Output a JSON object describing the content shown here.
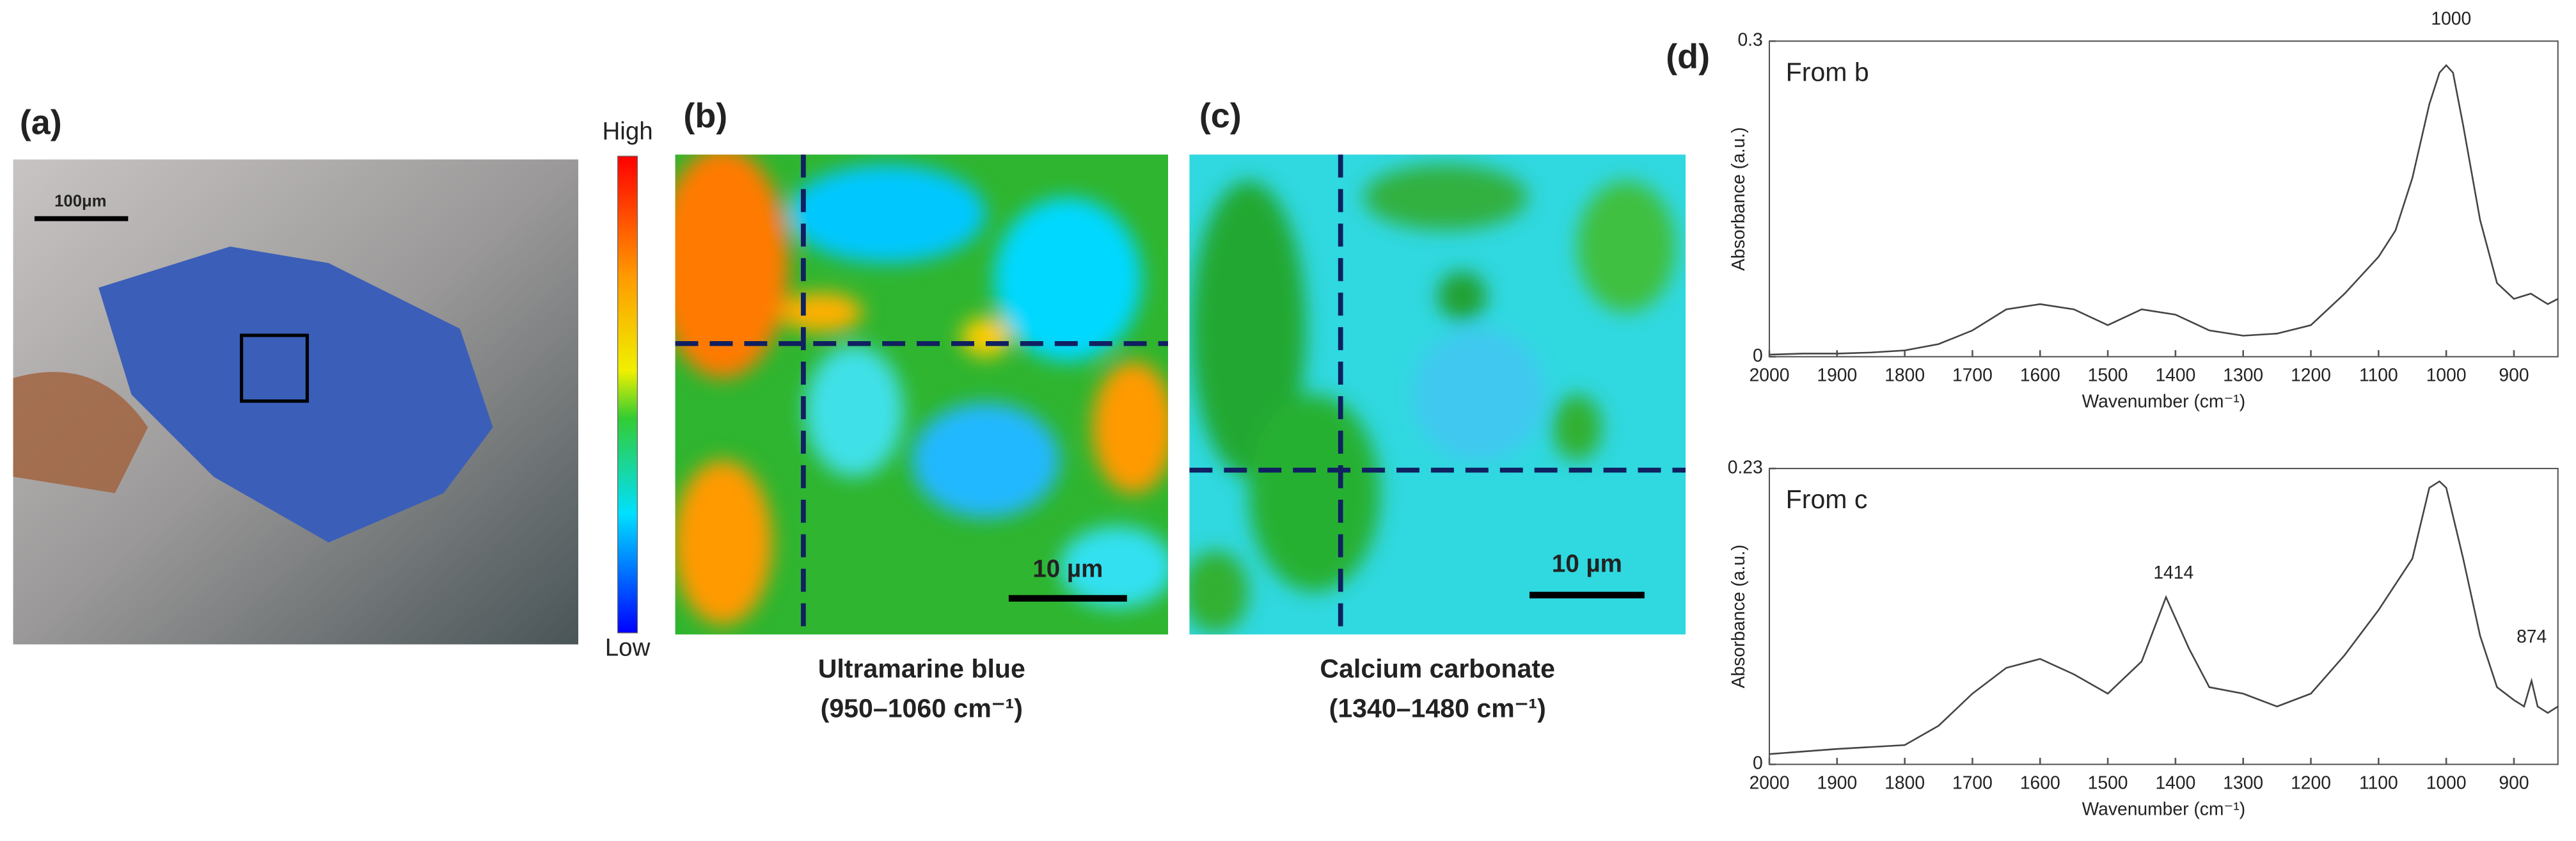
{
  "panels": {
    "a": {
      "label": "(a)",
      "scale_bar": "100μm"
    },
    "colorbar": {
      "high": "High",
      "low": "Low"
    },
    "b": {
      "label": "(b)",
      "scale_bar": "10 µm",
      "caption": [
        "Ultramarine blue",
        "(950–1060 cm⁻¹)"
      ]
    },
    "c": {
      "label": "(c)",
      "scale_bar": "10 µm",
      "caption": [
        "Calcium carbonate",
        "(1340–1480 cm⁻¹)"
      ]
    },
    "d": {
      "label": "(d)"
    }
  },
  "chart_data": [
    {
      "type": "line",
      "label": "From b",
      "xlabel": "Wavenumber (cm⁻¹)",
      "ylabel": "Absorbance (a.u.)",
      "annotations": [
        "1000"
      ],
      "xlim": [
        2000,
        835
      ],
      "xticks": [
        2000,
        1900,
        1800,
        1700,
        1600,
        1500,
        1400,
        1300,
        1200,
        1100,
        1000,
        900
      ],
      "ylim": [
        0,
        0.3
      ],
      "yticks": [
        0,
        0.3
      ],
      "series": [
        {
          "color": "#444444",
          "x": [
            2000,
            1950,
            1900,
            1850,
            1800,
            1750,
            1700,
            1650,
            1600,
            1550,
            1500,
            1450,
            1400,
            1350,
            1300,
            1250,
            1200,
            1150,
            1100,
            1075,
            1050,
            1025,
            1010,
            1000,
            990,
            975,
            950,
            925,
            900,
            875,
            850,
            835
          ],
          "values": [
            0.002,
            0.003,
            0.003,
            0.004,
            0.006,
            0.012,
            0.025,
            0.045,
            0.05,
            0.045,
            0.03,
            0.045,
            0.04,
            0.025,
            0.02,
            0.022,
            0.03,
            0.06,
            0.095,
            0.12,
            0.17,
            0.24,
            0.27,
            0.277,
            0.27,
            0.22,
            0.13,
            0.07,
            0.055,
            0.06,
            0.05,
            0.055
          ]
        }
      ]
    },
    {
      "type": "line",
      "label": "From c",
      "xlabel": "Wavenumber (cm⁻¹)",
      "ylabel": "Absorbance (a.u.)",
      "annotations": [
        "1414",
        "874"
      ],
      "xlim": [
        2000,
        835
      ],
      "xticks": [
        2000,
        1900,
        1800,
        1700,
        1600,
        1500,
        1400,
        1300,
        1200,
        1100,
        1000,
        900
      ],
      "ylim": [
        0,
        0.23
      ],
      "yticks": [
        0,
        0.23
      ],
      "series": [
        {
          "color": "#444444",
          "x": [
            2000,
            1900,
            1800,
            1750,
            1700,
            1650,
            1600,
            1550,
            1500,
            1450,
            1414,
            1380,
            1350,
            1300,
            1250,
            1200,
            1150,
            1100,
            1050,
            1025,
            1010,
            1000,
            975,
            950,
            925,
            900,
            885,
            874,
            865,
            850,
            835
          ],
          "values": [
            0.008,
            0.012,
            0.015,
            0.03,
            0.055,
            0.075,
            0.082,
            0.07,
            0.055,
            0.08,
            0.13,
            0.09,
            0.06,
            0.055,
            0.045,
            0.055,
            0.085,
            0.12,
            0.16,
            0.215,
            0.22,
            0.215,
            0.16,
            0.1,
            0.06,
            0.05,
            0.045,
            0.065,
            0.045,
            0.04,
            0.045
          ]
        }
      ]
    }
  ]
}
